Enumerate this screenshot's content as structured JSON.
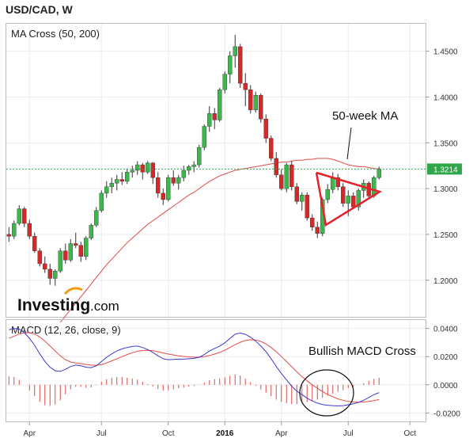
{
  "header": {
    "title": "USD/CAD, W"
  },
  "brand": {
    "name": "Investing",
    "domain": ".com"
  },
  "chart_data": [
    {
      "type": "candlestick",
      "title": "MA Cross (50, 200)",
      "timeframe": "weekly",
      "y_range": [
        1.16,
        1.48
      ],
      "y_ticks": [
        "1.2000",
        "1.2500",
        "1.3000",
        "1.3500",
        "1.4000",
        "1.4500"
      ],
      "x_ticks": [
        "Apr",
        "Jul",
        "Oct",
        "2016",
        "Apr",
        "Jul",
        "Oct"
      ],
      "x_tick_bold": "2016",
      "last_price_label": "1.3214",
      "last_price": 1.3214,
      "ohlc": [
        [
          1.25,
          1.258,
          1.242,
          1.248
        ],
        [
          1.248,
          1.265,
          1.245,
          1.262
        ],
        [
          1.262,
          1.282,
          1.26,
          1.278
        ],
        [
          1.278,
          1.28,
          1.258,
          1.262
        ],
        [
          1.262,
          1.266,
          1.245,
          1.248
        ],
        [
          1.248,
          1.252,
          1.23,
          1.232
        ],
        [
          1.232,
          1.235,
          1.215,
          1.218
        ],
        [
          1.218,
          1.226,
          1.208,
          1.212
        ],
        [
          1.212,
          1.218,
          1.195,
          1.202
        ],
        [
          1.202,
          1.212,
          1.194,
          1.21
        ],
        [
          1.21,
          1.235,
          1.208,
          1.232
        ],
        [
          1.232,
          1.24,
          1.218,
          1.222
        ],
        [
          1.222,
          1.245,
          1.22,
          1.24
        ],
        [
          1.24,
          1.252,
          1.235,
          1.238
        ],
        [
          1.238,
          1.242,
          1.22,
          1.226
        ],
        [
          1.226,
          1.248,
          1.222,
          1.246
        ],
        [
          1.246,
          1.262,
          1.244,
          1.26
        ],
        [
          1.26,
          1.28,
          1.258,
          1.276
        ],
        [
          1.276,
          1.298,
          1.274,
          1.295
        ],
        [
          1.295,
          1.308,
          1.29,
          1.302
        ],
        [
          1.302,
          1.312,
          1.295,
          1.306
        ],
        [
          1.306,
          1.315,
          1.298,
          1.31
        ],
        [
          1.31,
          1.318,
          1.304,
          1.308
        ],
        [
          1.308,
          1.322,
          1.305,
          1.318
        ],
        [
          1.318,
          1.325,
          1.312,
          1.32
        ],
        [
          1.32,
          1.33,
          1.315,
          1.326
        ],
        [
          1.326,
          1.328,
          1.31,
          1.318
        ],
        [
          1.318,
          1.33,
          1.316,
          1.328
        ],
        [
          1.328,
          1.329,
          1.305,
          1.312
        ],
        [
          1.312,
          1.318,
          1.29,
          1.295
        ],
        [
          1.295,
          1.3,
          1.282,
          1.288
        ],
        [
          1.288,
          1.315,
          1.286,
          1.312
        ],
        [
          1.312,
          1.32,
          1.303,
          1.306
        ],
        [
          1.306,
          1.315,
          1.299,
          1.312
        ],
        [
          1.312,
          1.325,
          1.308,
          1.32
        ],
        [
          1.32,
          1.326,
          1.315,
          1.324
        ],
        [
          1.324,
          1.33,
          1.318,
          1.326
        ],
        [
          1.326,
          1.348,
          1.323,
          1.345
        ],
        [
          1.345,
          1.37,
          1.342,
          1.368
        ],
        [
          1.368,
          1.39,
          1.362,
          1.382
        ],
        [
          1.382,
          1.388,
          1.365,
          1.375
        ],
        [
          1.375,
          1.41,
          1.373,
          1.408
        ],
        [
          1.408,
          1.428,
          1.404,
          1.425
        ],
        [
          1.425,
          1.45,
          1.415,
          1.445
        ],
        [
          1.445,
          1.468,
          1.432,
          1.455
        ],
        [
          1.455,
          1.458,
          1.41,
          1.415
        ],
        [
          1.415,
          1.426,
          1.39,
          1.408
        ],
        [
          1.408,
          1.413,
          1.382,
          1.386
        ],
        [
          1.386,
          1.406,
          1.383,
          1.402
        ],
        [
          1.402,
          1.404,
          1.372,
          1.376
        ],
        [
          1.376,
          1.381,
          1.35,
          1.355
        ],
        [
          1.355,
          1.358,
          1.33,
          1.333
        ],
        [
          1.333,
          1.34,
          1.312,
          1.315
        ],
        [
          1.315,
          1.321,
          1.298,
          1.3
        ],
        [
          1.3,
          1.328,
          1.296,
          1.326
        ],
        [
          1.326,
          1.33,
          1.298,
          1.302
        ],
        [
          1.302,
          1.306,
          1.283,
          1.286
        ],
        [
          1.286,
          1.296,
          1.276,
          1.293
        ],
        [
          1.293,
          1.296,
          1.265,
          1.268
        ],
        [
          1.268,
          1.272,
          1.254,
          1.258
        ],
        [
          1.258,
          1.264,
          1.246,
          1.251
        ],
        [
          1.251,
          1.29,
          1.248,
          1.288
        ],
        [
          1.288,
          1.305,
          1.284,
          1.299
        ],
        [
          1.299,
          1.318,
          1.295,
          1.312
        ],
        [
          1.312,
          1.316,
          1.298,
          1.302
        ],
        [
          1.302,
          1.306,
          1.28,
          1.284
        ],
        [
          1.284,
          1.298,
          1.27,
          1.292
        ],
        [
          1.292,
          1.296,
          1.278,
          1.28
        ],
        [
          1.28,
          1.3,
          1.276,
          1.298
        ],
        [
          1.298,
          1.31,
          1.29,
          1.306
        ],
        [
          1.306,
          1.308,
          1.288,
          1.292
        ],
        [
          1.292,
          1.314,
          1.29,
          1.312
        ],
        [
          1.312,
          1.324,
          1.31,
          1.3214
        ]
      ],
      "series": [
        {
          "name": "50-week MA",
          "values": [
            null,
            null,
            null,
            null,
            null,
            null,
            null,
            null,
            null,
            null,
            1.154,
            1.161,
            1.168,
            1.175,
            1.182,
            1.189,
            1.196,
            1.203,
            1.21,
            1.217,
            1.223,
            1.229,
            1.235,
            1.241,
            1.246,
            1.251,
            1.256,
            1.261,
            1.265,
            1.269,
            1.273,
            1.277,
            1.281,
            1.285,
            1.289,
            1.293,
            1.296,
            1.3,
            1.304,
            1.308,
            1.311,
            1.314,
            1.316,
            1.318,
            1.32,
            1.321,
            1.322,
            1.323,
            1.324,
            1.325,
            1.326,
            1.327,
            1.328,
            1.329,
            1.329,
            1.33,
            1.331,
            1.331,
            1.332,
            1.332,
            1.333,
            1.333,
            1.333,
            1.332,
            1.33,
            1.328,
            1.326,
            1.325,
            1.324,
            1.324,
            1.323,
            1.322,
            1.3214
          ]
        }
      ],
      "annotations": [
        {
          "text": "50-week MA"
        },
        {
          "shape": "triangle",
          "color": "#e8202a"
        }
      ],
      "grid": true,
      "colors": {
        "up": "#3cb84a",
        "down": "#d62828",
        "ma": "#e24a4a",
        "last_price_line": "#2fa64a"
      }
    },
    {
      "type": "line",
      "title": "MACD (12, 26, close, 9)",
      "y_range": [
        -0.026,
        0.046
      ],
      "y_ticks": [
        "-0.0200",
        "0.0000",
        "0.0200",
        "0.0400"
      ],
      "series": [
        {
          "name": "MACD",
          "values": [
            0.039,
            0.04,
            0.0395,
            0.037,
            0.033,
            0.028,
            0.022,
            0.0165,
            0.0125,
            0.01,
            0.0095,
            0.011,
            0.013,
            0.014,
            0.0135,
            0.0125,
            0.0122,
            0.0135,
            0.0165,
            0.0195,
            0.022,
            0.024,
            0.0255,
            0.0265,
            0.0272,
            0.0275,
            0.0265,
            0.025,
            0.023,
            0.0205,
            0.0185,
            0.0178,
            0.018,
            0.0182,
            0.0182,
            0.0185,
            0.0188,
            0.0195,
            0.0215,
            0.024,
            0.0258,
            0.0275,
            0.0298,
            0.033,
            0.036,
            0.0368,
            0.0358,
            0.0338,
            0.031,
            0.0275,
            0.0235,
            0.0185,
            0.013,
            0.008,
            0.0035,
            -0.001,
            -0.0045,
            -0.007,
            -0.0095,
            -0.0115,
            -0.013,
            -0.014,
            -0.0145,
            -0.0148,
            -0.015,
            -0.0148,
            -0.0142,
            -0.0135,
            -0.0125,
            -0.011,
            -0.009,
            -0.007,
            -0.0055
          ]
        },
        {
          "name": "Signal",
          "values": [
            0.033,
            0.0345,
            0.036,
            0.037,
            0.037,
            0.036,
            0.034,
            0.031,
            0.0275,
            0.024,
            0.0205,
            0.0178,
            0.0162,
            0.0155,
            0.015,
            0.0145,
            0.014,
            0.0138,
            0.0144,
            0.0155,
            0.017,
            0.0185,
            0.02,
            0.0215,
            0.0228,
            0.0238,
            0.0244,
            0.0245,
            0.0242,
            0.0235,
            0.0226,
            0.0218,
            0.0212,
            0.0206,
            0.0201,
            0.0198,
            0.0196,
            0.0196,
            0.02,
            0.0208,
            0.0218,
            0.023,
            0.0245,
            0.0265,
            0.0285,
            0.0302,
            0.0315,
            0.032,
            0.0318,
            0.0308,
            0.029,
            0.0265,
            0.0235,
            0.02,
            0.0165,
            0.0128,
            0.0092,
            0.0058,
            0.0028,
            0.0,
            -0.0025,
            -0.0048,
            -0.0068,
            -0.0085,
            -0.01,
            -0.011,
            -0.0118,
            -0.0122,
            -0.0124,
            -0.0122,
            -0.0118,
            -0.0112,
            -0.0105
          ]
        }
      ],
      "histogram": "MACD minus Signal",
      "annotations": [
        {
          "text": "Bullish MACD Cross"
        }
      ],
      "colors": {
        "macd": "#3b3bcc",
        "signal": "#e24a4a",
        "hist": "#d84a4a"
      }
    }
  ]
}
